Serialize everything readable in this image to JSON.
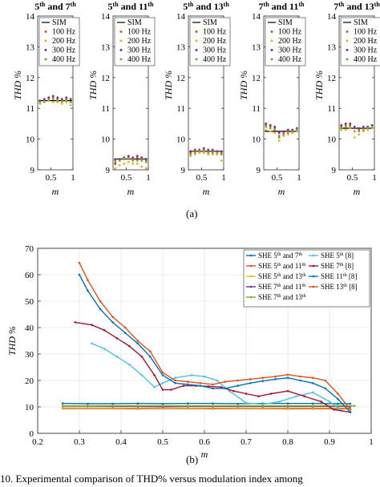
{
  "figure": {
    "label_a": "(a)",
    "label_b": "(b)",
    "caption_fragment": "10.   Experimental comparison of THD% versus modulation index among"
  },
  "chart_data": [
    {
      "type": "scatter",
      "title": "5th and 7th",
      "title_parts": [
        "5",
        "th",
        " and 7",
        "th"
      ],
      "ylabel": "THD %",
      "xlabel": "m",
      "xlim": [
        0.2,
        1.0
      ],
      "ylim": [
        9,
        14
      ],
      "xticks": [
        0.5,
        1
      ],
      "yticks": [
        9,
        10,
        11,
        12,
        13,
        14
      ],
      "sim_value": 11.25,
      "legend": [
        "SIM",
        "100 Hz",
        "200 Hz",
        "300 Hz",
        "400 Hz"
      ],
      "series": [
        {
          "name": "100 Hz",
          "x": [
            0.25,
            0.35,
            0.45,
            0.55,
            0.65,
            0.75,
            0.85,
            0.95
          ],
          "y": [
            11.2,
            11.25,
            11.3,
            11.35,
            11.3,
            11.25,
            11.3,
            11.2
          ]
        },
        {
          "name": "200 Hz",
          "x": [
            0.25,
            0.35,
            0.45,
            0.55,
            0.65,
            0.75,
            0.85,
            0.95
          ],
          "y": [
            11.15,
            11.2,
            11.25,
            11.2,
            11.2,
            11.15,
            11.2,
            11.1
          ]
        },
        {
          "name": "300 Hz",
          "x": [
            0.25,
            0.35,
            0.45,
            0.55,
            0.65,
            0.75,
            0.85,
            0.95
          ],
          "y": [
            11.25,
            11.3,
            11.35,
            11.4,
            11.35,
            11.3,
            11.35,
            11.3
          ]
        },
        {
          "name": "400 Hz",
          "x": [
            0.25,
            0.35,
            0.45,
            0.55,
            0.65,
            0.75,
            0.85,
            0.95
          ],
          "y": [
            11.2,
            11.22,
            11.28,
            11.3,
            11.25,
            11.22,
            11.25,
            11.2
          ]
        }
      ]
    },
    {
      "type": "scatter",
      "title": "5th and 11th",
      "title_parts": [
        "5",
        "th",
        " and 11",
        "th"
      ],
      "ylabel": "THD %",
      "xlabel": "m",
      "xlim": [
        0.2,
        1.0
      ],
      "ylim": [
        9,
        14
      ],
      "xticks": [
        0.5,
        1
      ],
      "yticks": [
        9,
        10,
        11,
        12,
        13,
        14
      ],
      "sim_value": 9.35,
      "legend": [
        "SIM",
        "100 Hz",
        "200 Hz",
        "300 Hz",
        "400 Hz"
      ],
      "series": [
        {
          "name": "100 Hz",
          "x": [
            0.25,
            0.35,
            0.45,
            0.55,
            0.65,
            0.75,
            0.85,
            0.95
          ],
          "y": [
            9.3,
            9.3,
            9.35,
            9.4,
            9.35,
            9.4,
            9.35,
            9.3
          ]
        },
        {
          "name": "200 Hz",
          "x": [
            0.25,
            0.35,
            0.45,
            0.55,
            0.65,
            0.75,
            0.85,
            0.95
          ],
          "y": [
            9.05,
            9.15,
            9.2,
            9.25,
            9.2,
            9.2,
            9.1,
            9.05
          ]
        },
        {
          "name": "300 Hz",
          "x": [
            0.25,
            0.35,
            0.45,
            0.55,
            0.65,
            0.75,
            0.85,
            0.95
          ],
          "y": [
            9.2,
            9.35,
            9.4,
            9.45,
            9.4,
            9.45,
            9.4,
            9.35
          ]
        },
        {
          "name": "400 Hz",
          "x": [
            0.25,
            0.35,
            0.45,
            0.55,
            0.65,
            0.75,
            0.85,
            0.95
          ],
          "y": [
            9.25,
            9.3,
            9.35,
            9.35,
            9.3,
            9.3,
            9.3,
            9.25
          ]
        }
      ]
    },
    {
      "type": "scatter",
      "title": "5th and 13th",
      "title_parts": [
        "5",
        "th",
        " and 13",
        "th"
      ],
      "ylabel": "THD %",
      "xlabel": "m",
      "xlim": [
        0.2,
        1.0
      ],
      "ylim": [
        9,
        14
      ],
      "xticks": [
        0.5,
        1
      ],
      "yticks": [
        9,
        10,
        11,
        12,
        13,
        14
      ],
      "sim_value": 9.6,
      "legend": [
        "SIM",
        "100 Hz",
        "200 Hz",
        "300 Hz",
        "400 Hz"
      ],
      "series": [
        {
          "name": "100 Hz",
          "x": [
            0.25,
            0.35,
            0.45,
            0.55,
            0.65,
            0.75,
            0.85,
            0.95
          ],
          "y": [
            9.55,
            9.6,
            9.6,
            9.65,
            9.6,
            9.6,
            9.6,
            9.55
          ]
        },
        {
          "name": "200 Hz",
          "x": [
            0.25,
            0.35,
            0.45,
            0.55,
            0.65,
            0.75,
            0.85,
            0.95
          ],
          "y": [
            9.45,
            9.5,
            9.55,
            9.55,
            9.5,
            9.5,
            9.5,
            9.3
          ]
        },
        {
          "name": "300 Hz",
          "x": [
            0.25,
            0.35,
            0.45,
            0.55,
            0.65,
            0.75,
            0.85,
            0.95
          ],
          "y": [
            9.6,
            9.65,
            9.65,
            9.7,
            9.65,
            9.65,
            9.6,
            9.6
          ]
        },
        {
          "name": "400 Hz",
          "x": [
            0.25,
            0.35,
            0.45,
            0.55,
            0.65,
            0.75,
            0.85,
            0.95
          ],
          "y": [
            9.5,
            9.55,
            9.6,
            9.6,
            9.55,
            9.55,
            9.55,
            9.5
          ]
        }
      ]
    },
    {
      "type": "scatter",
      "title": "7th and 11th",
      "title_parts": [
        "7",
        "th",
        " and 11",
        "th"
      ],
      "ylabel": "THD %",
      "xlabel": "m",
      "xlim": [
        0.2,
        1.0
      ],
      "ylim": [
        9,
        14
      ],
      "xticks": [
        0.5,
        1
      ],
      "yticks": [
        9,
        10,
        11,
        12,
        13,
        14
      ],
      "sim_value": 10.25,
      "legend": [
        "SIM",
        "100 Hz",
        "200 Hz",
        "300 Hz",
        "400 Hz"
      ],
      "series": [
        {
          "name": "100 Hz",
          "x": [
            0.25,
            0.35,
            0.45,
            0.55,
            0.65,
            0.75,
            0.85,
            0.95
          ],
          "y": [
            10.45,
            10.4,
            10.35,
            10.1,
            10.2,
            10.25,
            10.2,
            10.3
          ]
        },
        {
          "name": "200 Hz",
          "x": [
            0.25,
            0.35,
            0.45,
            0.55,
            0.65,
            0.75,
            0.85,
            0.95
          ],
          "y": [
            10.3,
            10.25,
            10.2,
            9.95,
            10.1,
            10.15,
            10.2,
            10.25
          ]
        },
        {
          "name": "300 Hz",
          "x": [
            0.25,
            0.35,
            0.45,
            0.55,
            0.65,
            0.75,
            0.85,
            0.95
          ],
          "y": [
            10.5,
            10.45,
            10.4,
            10.2,
            10.25,
            10.3,
            10.3,
            10.35
          ]
        },
        {
          "name": "400 Hz",
          "x": [
            0.25,
            0.35,
            0.45,
            0.55,
            0.65,
            0.75,
            0.85,
            0.95
          ],
          "y": [
            10.4,
            10.35,
            10.3,
            10.05,
            10.15,
            10.2,
            10.25,
            10.3
          ]
        }
      ]
    },
    {
      "type": "scatter",
      "title": "7th and 13th",
      "title_parts": [
        "7",
        "th",
        " and 13",
        "th"
      ],
      "ylabel": "THD %",
      "xlabel": "m",
      "xlim": [
        0.2,
        1.0
      ],
      "ylim": [
        9,
        14
      ],
      "xticks": [
        0.5,
        1
      ],
      "yticks": [
        9,
        10,
        11,
        12,
        13,
        14
      ],
      "sim_value": 10.35,
      "legend": [
        "SIM",
        "100 Hz",
        "200 Hz",
        "300 Hz",
        "400 Hz"
      ],
      "series": [
        {
          "name": "100 Hz",
          "x": [
            0.25,
            0.35,
            0.45,
            0.55,
            0.65,
            0.75,
            0.85,
            0.95
          ],
          "y": [
            10.4,
            10.45,
            10.45,
            10.35,
            10.3,
            10.35,
            10.35,
            10.4
          ]
        },
        {
          "name": "200 Hz",
          "x": [
            0.25,
            0.35,
            0.45,
            0.55,
            0.65,
            0.75,
            0.85,
            0.95
          ],
          "y": [
            10.3,
            10.3,
            10.35,
            10.05,
            10.15,
            10.25,
            10.3,
            10.35
          ]
        },
        {
          "name": "300 Hz",
          "x": [
            0.25,
            0.35,
            0.45,
            0.55,
            0.65,
            0.75,
            0.85,
            0.95
          ],
          "y": [
            10.45,
            10.5,
            10.5,
            10.4,
            10.35,
            10.4,
            10.4,
            10.45
          ]
        },
        {
          "name": "400 Hz",
          "x": [
            0.25,
            0.35,
            0.45,
            0.55,
            0.65,
            0.75,
            0.85,
            0.95
          ],
          "y": [
            10.35,
            10.4,
            10.4,
            10.25,
            10.25,
            10.3,
            10.35,
            10.4
          ]
        }
      ]
    },
    {
      "type": "line",
      "title": "",
      "xlabel": "m",
      "ylabel": "THD %",
      "xlim": [
        0.2,
        1.0
      ],
      "ylim": [
        0,
        70
      ],
      "xticks": [
        0.2,
        0.3,
        0.4,
        0.5,
        0.6,
        0.7,
        0.8,
        0.9,
        1.0
      ],
      "xtick_labels": [
        "0.2",
        "0.3",
        "0.4",
        "0.5",
        "0.6",
        "0.7",
        "0.8",
        "0.9",
        "1"
      ],
      "yticks": [
        0,
        10,
        20,
        30,
        40,
        50,
        60,
        70
      ],
      "grid": true,
      "legend_position": "top-right",
      "legend_columns": 2,
      "series": [
        {
          "name": "SHE 5th and 7th",
          "name_parts": [
            "SHE 5",
            "th",
            " and 7",
            "th"
          ],
          "color": "#0072BD",
          "x": [
            0.26,
            0.32,
            0.38,
            0.44,
            0.5,
            0.56,
            0.62,
            0.68,
            0.74,
            0.8,
            0.86,
            0.92,
            0.95
          ],
          "y": [
            11.3,
            11.2,
            11.2,
            11.3,
            11.2,
            11.3,
            11.3,
            11.2,
            11.3,
            11.3,
            11.3,
            11.2,
            11.2
          ]
        },
        {
          "name": "SHE 5th and 11th",
          "name_parts": [
            "SHE 5",
            "th",
            " and 11",
            "th"
          ],
          "color": "#D95319",
          "x": [
            0.26,
            0.32,
            0.38,
            0.44,
            0.5,
            0.56,
            0.62,
            0.68,
            0.74,
            0.8,
            0.86,
            0.92,
            0.95
          ],
          "y": [
            9.4,
            9.4,
            9.4,
            9.3,
            9.4,
            9.4,
            9.3,
            9.4,
            9.4,
            9.3,
            9.3,
            9.3,
            9.3
          ]
        },
        {
          "name": "SHE 5th and 13th",
          "name_parts": [
            "SHE 5",
            "th",
            " and 13",
            "th"
          ],
          "color": "#EDB120",
          "x": [
            0.26,
            0.32,
            0.38,
            0.44,
            0.5,
            0.56,
            0.62,
            0.68,
            0.74,
            0.8,
            0.86,
            0.92,
            0.95
          ],
          "y": [
            9.6,
            9.6,
            9.6,
            9.6,
            9.6,
            9.6,
            9.6,
            9.6,
            9.6,
            9.6,
            9.6,
            9.6,
            9.6
          ]
        },
        {
          "name": "SHE 7th and 11th",
          "name_parts": [
            "SHE 7",
            "th",
            " and 11",
            "th"
          ],
          "color": "#7E2F8E",
          "x": [
            0.26,
            0.32,
            0.38,
            0.44,
            0.5,
            0.56,
            0.62,
            0.68,
            0.74,
            0.8,
            0.86,
            0.92,
            0.95
          ],
          "y": [
            10.3,
            10.3,
            10.2,
            10.2,
            10.1,
            10.2,
            10.2,
            10.2,
            10.2,
            10.2,
            10.2,
            10.2,
            10.2
          ]
        },
        {
          "name": "SHE 7th and 13th",
          "name_parts": [
            "SHE 7",
            "th",
            " and 13",
            "th"
          ],
          "color": "#77AC30",
          "x": [
            0.26,
            0.32,
            0.38,
            0.44,
            0.5,
            0.56,
            0.62,
            0.68,
            0.74,
            0.8,
            0.86,
            0.92,
            0.96
          ],
          "y": [
            10.4,
            10.4,
            10.4,
            10.4,
            10.4,
            10.4,
            10.4,
            10.4,
            10.4,
            10.4,
            10.4,
            10.4,
            10.4
          ]
        },
        {
          "name": "SHE 5th [8]",
          "name_parts": [
            "SHE 5",
            "th",
            " [8]",
            ""
          ],
          "color": "#4DBEEE",
          "x": [
            0.33,
            0.36,
            0.39,
            0.42,
            0.45,
            0.48,
            0.5,
            0.53,
            0.57,
            0.6,
            0.63,
            0.66,
            0.7,
            0.74,
            0.78,
            0.82,
            0.86,
            0.9,
            0.93
          ],
          "y": [
            34,
            32,
            29,
            26,
            22,
            17.5,
            19,
            21,
            22,
            21.5,
            20,
            16,
            11.5,
            11,
            12,
            14,
            15.5,
            12,
            8.5
          ]
        },
        {
          "name": "SHE 7th [8]",
          "name_parts": [
            "SHE 7",
            "th",
            " [8]",
            ""
          ],
          "color": "#A2142F",
          "x": [
            0.29,
            0.33,
            0.36,
            0.39,
            0.42,
            0.45,
            0.48,
            0.5,
            0.52,
            0.55,
            0.58,
            0.61,
            0.64,
            0.67,
            0.7,
            0.73,
            0.76,
            0.8,
            0.84,
            0.88,
            0.91,
            0.95
          ],
          "y": [
            42,
            41,
            39,
            36,
            33,
            29,
            22,
            16.5,
            16.5,
            18,
            18,
            17.8,
            17.5,
            16,
            15,
            14,
            15,
            16,
            14,
            12,
            9,
            8
          ]
        },
        {
          "name": "SHE 11th [8]",
          "name_parts": [
            "SHE 11",
            "th",
            " [8]",
            ""
          ],
          "color": "#0072BD",
          "x": [
            0.3,
            0.32,
            0.35,
            0.38,
            0.41,
            0.44,
            0.47,
            0.5,
            0.53,
            0.56,
            0.59,
            0.62,
            0.65,
            0.68,
            0.71,
            0.74,
            0.77,
            0.8,
            0.83,
            0.86,
            0.89,
            0.92,
            0.95
          ],
          "y": [
            60,
            54,
            47,
            42,
            38,
            34,
            29,
            22,
            19,
            18.5,
            18,
            17,
            17,
            18,
            19,
            19.8,
            20.5,
            21,
            20,
            19,
            17,
            13,
            8
          ]
        },
        {
          "name": "SHE 13th [8]",
          "name_parts": [
            "SHE 13",
            "th",
            " [8]",
            ""
          ],
          "color": "#D95319",
          "x": [
            0.3,
            0.32,
            0.35,
            0.38,
            0.41,
            0.44,
            0.47,
            0.5,
            0.53,
            0.56,
            0.59,
            0.62,
            0.65,
            0.68,
            0.71,
            0.74,
            0.77,
            0.8,
            0.83,
            0.86,
            0.89,
            0.92,
            0.95
          ],
          "y": [
            64.5,
            58,
            50,
            44,
            40,
            35,
            31,
            23,
            20,
            19.5,
            19,
            18.5,
            19.5,
            20,
            20.5,
            21,
            21.5,
            22.2,
            21.5,
            21,
            20,
            15,
            9
          ]
        }
      ]
    }
  ]
}
